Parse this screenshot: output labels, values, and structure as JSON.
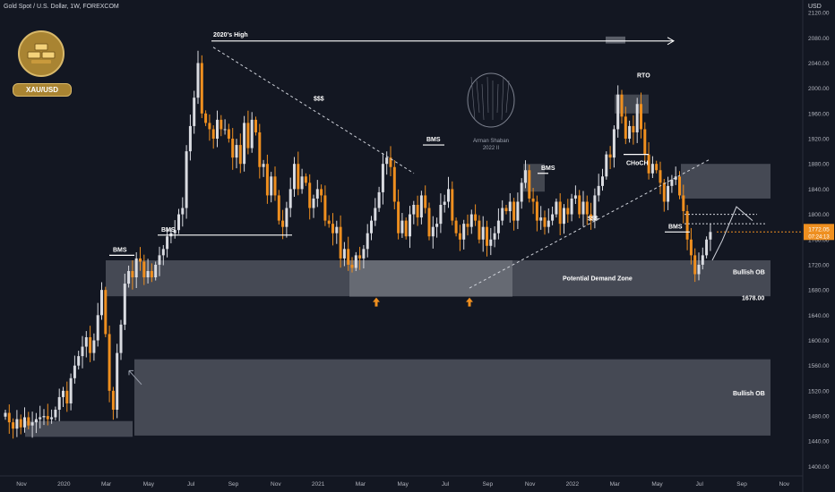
{
  "header": {
    "symbol_info": "Gold Spot / U.S. Dollar, 1W, FOREXCOM",
    "currency": "USD"
  },
  "badge": {
    "label": "XAU/USD",
    "icon": "gold-bars-icon"
  },
  "watermark": {
    "name": "Arman Shaban",
    "year": "2022 II"
  },
  "colors": {
    "background": "#131722",
    "up_candle": "#d9dbe1",
    "down_candle": "#ef8f1f",
    "zone": "#b2b5be",
    "arrow": "#ef8f1f",
    "badge": "#a98432"
  },
  "chart_data": {
    "type": "candlestick",
    "timeframe": "1W",
    "y_ticks": [
      "2120.00",
      "2080.00",
      "2040.00",
      "2000.00",
      "1960.00",
      "1920.00",
      "1880.00",
      "1840.00",
      "1800.00",
      "1760.00",
      "1720.00",
      "1680.00",
      "1640.00",
      "1600.00",
      "1560.00",
      "1520.00",
      "1480.00",
      "1440.00",
      "1400.00"
    ],
    "x_ticks": [
      "Nov",
      "2020",
      "Mar",
      "May",
      "Jul",
      "Sep",
      "Nov",
      "2021",
      "Mar",
      "May",
      "Jul",
      "Sep",
      "Nov",
      "2022",
      "Mar",
      "May",
      "Jul",
      "Sep",
      "Nov"
    ],
    "ylim": [
      1385,
      2140
    ],
    "last_price": "1772.05",
    "countdown": "07:24:13",
    "price_label": "1678.00",
    "annotations": {
      "high_2020": "2020's High",
      "bms": "BMS",
      "liquidity": "$$$",
      "rto": "RTO",
      "choch": "CHoCH",
      "demand_zone": "Potential Demand Zone",
      "bullish_ob": "Bullish OB"
    },
    "closes": [
      1485,
      1470,
      1460,
      1475,
      1462,
      1478,
      1465,
      1470,
      1475,
      1478,
      1480,
      1475,
      1478,
      1490,
      1510,
      1520,
      1500,
      1540,
      1560,
      1575,
      1590,
      1605,
      1580,
      1600,
      1640,
      1680,
      1610,
      1520,
      1490,
      1580,
      1625,
      1690,
      1710,
      1700,
      1730,
      1725,
      1700,
      1710,
      1700,
      1720,
      1735,
      1745,
      1765,
      1770,
      1775,
      1800,
      1810,
      1900,
      1940,
      1985,
      2040,
      1960,
      1945,
      1935,
      1920,
      1950,
      1935,
      1935,
      1920,
      1890,
      1910,
      1880,
      1945,
      1905,
      1950,
      1930,
      1875,
      1880,
      1830,
      1860,
      1830,
      1790,
      1780,
      1810,
      1840,
      1880,
      1840,
      1860,
      1850,
      1810,
      1825,
      1840,
      1830,
      1790,
      1785,
      1770,
      1780,
      1730,
      1745,
      1720,
      1715,
      1735,
      1730,
      1745,
      1770,
      1790,
      1810,
      1835,
      1880,
      1890,
      1875,
      1820,
      1770,
      1790,
      1765,
      1800,
      1815,
      1795,
      1830,
      1810,
      1765,
      1780,
      1785,
      1815,
      1820,
      1840,
      1790,
      1770,
      1760,
      1785,
      1780,
      1800,
      1790,
      1760,
      1780,
      1750,
      1760,
      1770,
      1790,
      1810,
      1805,
      1820,
      1790,
      1820,
      1850,
      1870,
      1825,
      1820,
      1790,
      1795,
      1780,
      1790,
      1800,
      1820,
      1785,
      1810,
      1800,
      1825,
      1830,
      1800,
      1820,
      1800,
      1790,
      1830,
      1845,
      1860,
      1895,
      1890,
      1935,
      1990,
      1955,
      1920,
      1940,
      1930,
      1975,
      1935,
      1895,
      1865,
      1880,
      1870,
      1850,
      1820,
      1845,
      1855,
      1860,
      1830,
      1805,
      1760,
      1735,
      1705,
      1720,
      1735,
      1760,
      1772
    ]
  }
}
